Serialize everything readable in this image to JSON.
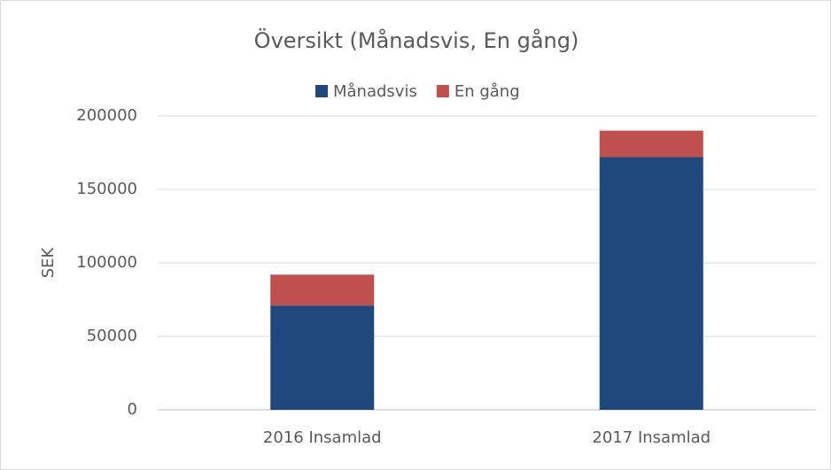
{
  "chart_data": {
    "type": "stacked_bar",
    "title": "Översikt (Månadsvis, En gång)",
    "y_label": "SEK",
    "categories": [
      "2016 Insamlad",
      "2017 Insamlad"
    ],
    "series": [
      {
        "name": "Månadsvis",
        "color": "#1f497d",
        "values": [
          71000,
          172000
        ]
      },
      {
        "name": "En gång",
        "color": "#c0504d",
        "values": [
          21000,
          18000
        ]
      }
    ],
    "ylim": [
      0,
      200000
    ],
    "yticks": [
      0,
      50000,
      100000,
      150000,
      200000
    ],
    "grid": true,
    "legend": "top"
  }
}
